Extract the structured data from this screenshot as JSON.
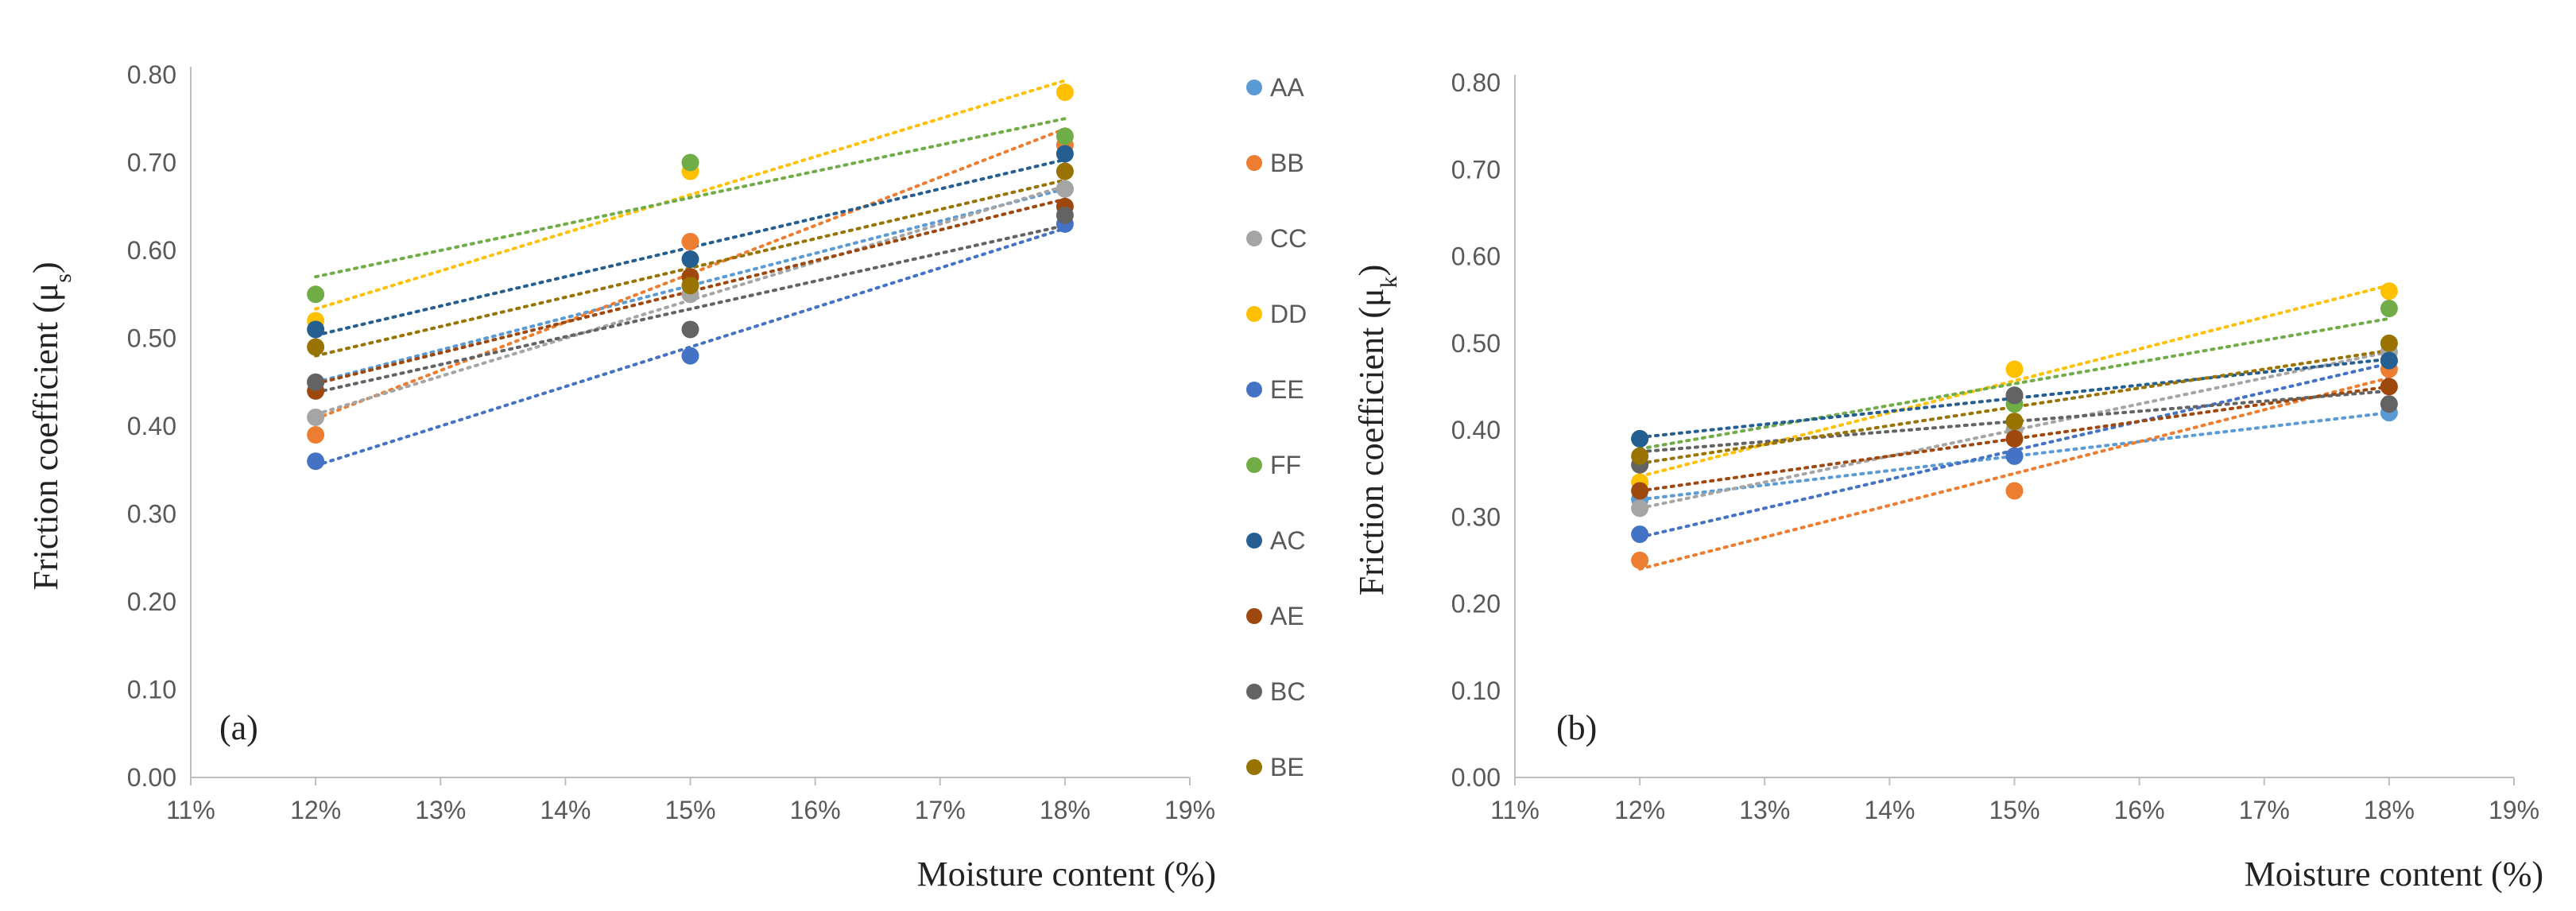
{
  "chart_data": [
    {
      "type": "scatter",
      "panel_label": "(a)",
      "ylabel_main": "Friction coefficient (μ",
      "ylabel_sub": "s",
      "ylabel_close": ")",
      "xlabel": "Moisture content (%)",
      "xlim": [
        11,
        19
      ],
      "ylim": [
        0,
        0.8
      ],
      "x_ticks": [
        "11%",
        "12%",
        "13%",
        "14%",
        "15%",
        "16%",
        "17%",
        "18%",
        "19%"
      ],
      "y_ticks": [
        "0.00",
        "0.10",
        "0.20",
        "0.30",
        "0.40",
        "0.50",
        "0.60",
        "0.70",
        "0.80"
      ],
      "trendline": "linear, dotted",
      "x": [
        12,
        15,
        18
      ],
      "series": [
        {
          "name": "AA",
          "values": [
            0.45,
            0.56,
            0.67
          ]
        },
        {
          "name": "BB",
          "values": [
            0.39,
            0.61,
            0.72
          ]
        },
        {
          "name": "CC",
          "values": [
            0.41,
            0.55,
            0.67
          ]
        },
        {
          "name": "DD",
          "values": [
            0.52,
            0.69,
            0.78
          ]
        },
        {
          "name": "EE",
          "values": [
            0.36,
            0.48,
            0.63
          ]
        },
        {
          "name": "FF",
          "values": [
            0.55,
            0.7,
            0.73
          ]
        },
        {
          "name": "AC",
          "values": [
            0.51,
            0.59,
            0.71
          ]
        },
        {
          "name": "AE",
          "values": [
            0.44,
            0.57,
            0.65
          ]
        },
        {
          "name": "BC",
          "values": [
            0.45,
            0.51,
            0.64
          ]
        },
        {
          "name": "BE",
          "values": [
            0.49,
            0.56,
            0.69
          ]
        }
      ]
    },
    {
      "type": "scatter",
      "panel_label": "(b)",
      "ylabel_main": "Friction coefficient (μ",
      "ylabel_sub": "k",
      "ylabel_close": ")",
      "xlabel": "Moisture content (%)",
      "xlim": [
        11,
        19
      ],
      "ylim": [
        0,
        0.8
      ],
      "x_ticks": [
        "11%",
        "12%",
        "13%",
        "14%",
        "15%",
        "16%",
        "17%",
        "18%",
        "19%"
      ],
      "y_ticks": [
        "0.00",
        "0.10",
        "0.20",
        "0.30",
        "0.40",
        "0.50",
        "0.60",
        "0.70",
        "0.80"
      ],
      "trendline": "linear, dotted",
      "x": [
        12,
        15,
        18
      ],
      "series": [
        {
          "name": "AA",
          "values": [
            0.32,
            0.37,
            0.42
          ]
        },
        {
          "name": "BB",
          "values": [
            0.25,
            0.33,
            0.47
          ]
        },
        {
          "name": "CC",
          "values": [
            0.31,
            0.4,
            0.49
          ]
        },
        {
          "name": "DD",
          "values": [
            0.34,
            0.47,
            0.56
          ]
        },
        {
          "name": "EE",
          "values": [
            0.28,
            0.37,
            0.48
          ]
        },
        {
          "name": "FF",
          "values": [
            0.39,
            0.43,
            0.54
          ]
        },
        {
          "name": "AC",
          "values": [
            0.39,
            0.44,
            0.48
          ]
        },
        {
          "name": "AE",
          "values": [
            0.33,
            0.39,
            0.45
          ]
        },
        {
          "name": "BC",
          "values": [
            0.36,
            0.44,
            0.43
          ]
        },
        {
          "name": "BE",
          "values": [
            0.37,
            0.41,
            0.5
          ]
        }
      ]
    }
  ],
  "legend": [
    {
      "name": "AA",
      "color": "#5B9BD5"
    },
    {
      "name": "BB",
      "color": "#ED7D31"
    },
    {
      "name": "CC",
      "color": "#A5A5A5"
    },
    {
      "name": "DD",
      "color": "#FFC000"
    },
    {
      "name": "EE",
      "color": "#4472C4"
    },
    {
      "name": "FF",
      "color": "#70AD47"
    },
    {
      "name": "AC",
      "color": "#255E91"
    },
    {
      "name": "AE",
      "color": "#9E480E"
    },
    {
      "name": "BC",
      "color": "#636363"
    },
    {
      "name": "BE",
      "color": "#997300"
    }
  ]
}
